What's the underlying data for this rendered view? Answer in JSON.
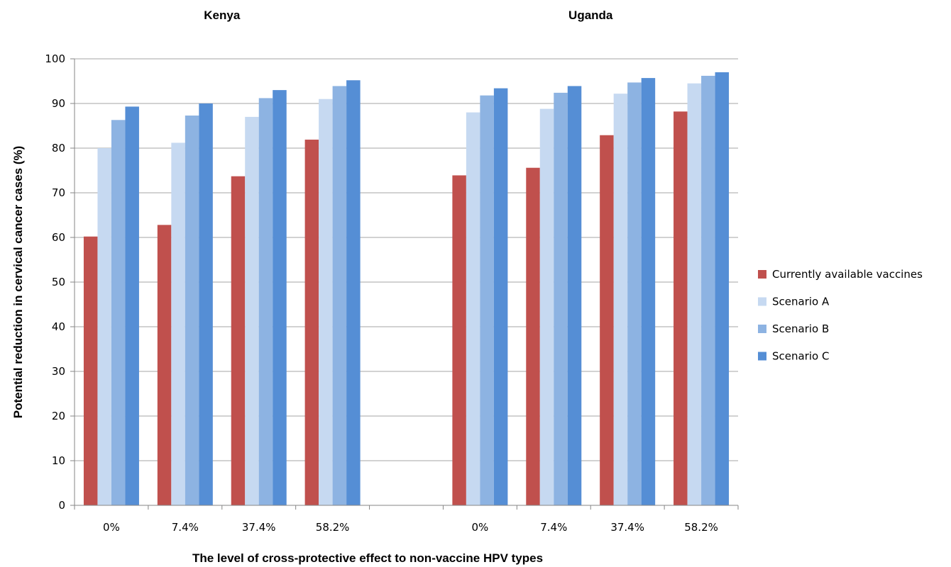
{
  "chart_data": {
    "type": "bar",
    "ylabel": "Potential reduction in cervical cancer cases (%)",
    "xlabel": "The level of cross-protective effect to non-vaccine HPV types",
    "ylim": [
      0,
      100
    ],
    "yticks": [
      0,
      10,
      20,
      30,
      40,
      50,
      60,
      70,
      80,
      90,
      100
    ],
    "grid": true,
    "legend_position": "right",
    "groups": [
      {
        "name": "Kenya",
        "categories": [
          "0%",
          "7.4%",
          "37.4%",
          "58.2%"
        ],
        "series": [
          {
            "name": "Currently available vaccines",
            "color": "#c0504d",
            "values": [
              60.2,
              62.8,
              73.7,
              81.9
            ]
          },
          {
            "name": "Scenario A",
            "color": "#c6d9f1",
            "values": [
              80.0,
              81.2,
              87.0,
              91.0
            ]
          },
          {
            "name": "Scenario B",
            "color": "#8db3e2",
            "values": [
              86.3,
              87.3,
              91.2,
              93.9
            ]
          },
          {
            "name": "Scenario C",
            "color": "#558ed5",
            "values": [
              89.3,
              90.0,
              93.0,
              95.2
            ]
          }
        ]
      },
      {
        "name": "Uganda",
        "categories": [
          "0%",
          "7.4%",
          "37.4%",
          "58.2%"
        ],
        "series": [
          {
            "name": "Currently available vaccines",
            "color": "#c0504d",
            "values": [
              73.9,
              75.6,
              82.9,
              88.2
            ]
          },
          {
            "name": "Scenario A",
            "color": "#c6d9f1",
            "values": [
              88.0,
              88.8,
              92.2,
              94.5
            ]
          },
          {
            "name": "Scenario B",
            "color": "#8db3e2",
            "values": [
              91.8,
              92.4,
              94.7,
              96.2
            ]
          },
          {
            "name": "Scenario C",
            "color": "#558ed5",
            "values": [
              93.4,
              93.9,
              95.7,
              97.0
            ]
          }
        ]
      }
    ],
    "legend": [
      {
        "name": "Currently available vaccines",
        "color": "#c0504d"
      },
      {
        "name": "Scenario A",
        "color": "#c6d9f1"
      },
      {
        "name": "Scenario B",
        "color": "#8db3e2"
      },
      {
        "name": "Scenario C",
        "color": "#558ed5"
      }
    ]
  },
  "colors": {
    "gridline": "#a6a6a6",
    "axis": "#868686"
  }
}
